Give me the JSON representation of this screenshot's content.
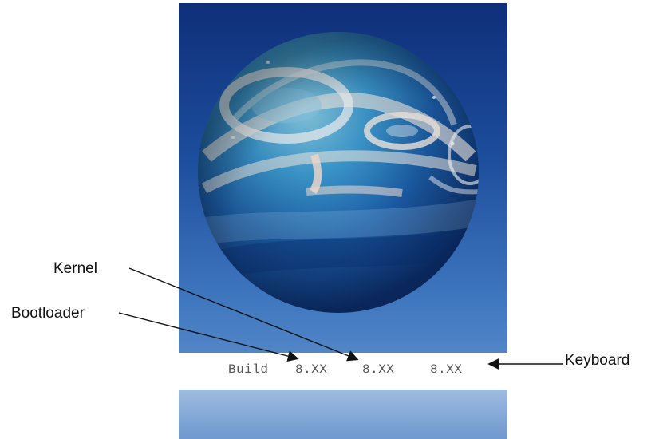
{
  "boot_screen": {
    "build_label": "Build",
    "bootloader_version": "8.XX",
    "kernel_version": "8.XX",
    "keyboard_version": "8.XX"
  },
  "callouts": {
    "kernel": "Kernel",
    "bootloader": "Bootloader",
    "keyboard": "Keyboard"
  },
  "colors": {
    "background_top": "#0f2f79",
    "background_bottom": "#6d9dd4",
    "build_bar": "#ffffff",
    "text": "#555555",
    "callout_text": "#111111"
  }
}
